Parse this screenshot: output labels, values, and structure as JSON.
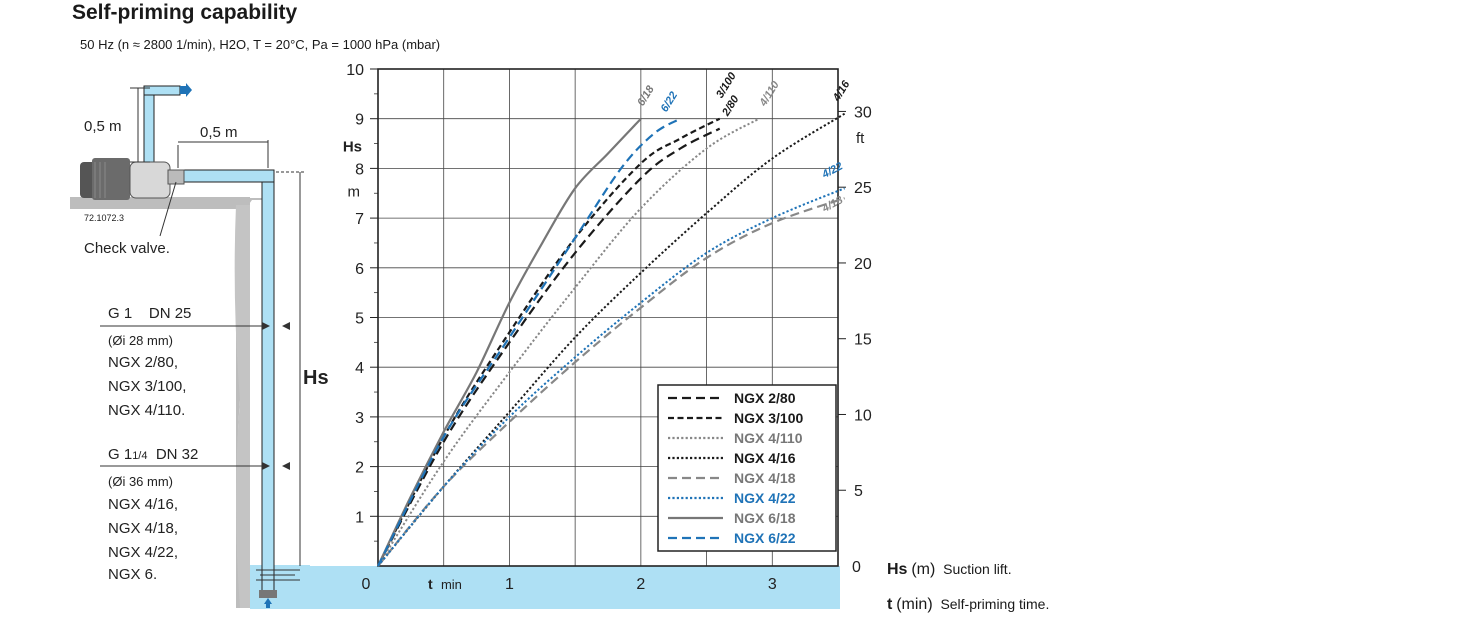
{
  "title": "Self-priming capability",
  "subtitle": "50 Hz (n ≈ 2800 1/min),  H2O, T = 20°C, Pa = 1000 hPa (mbar)",
  "diagram": {
    "discharge_height": "0,5 m",
    "horizontal_length": "0,5 m",
    "part_number": "72.1072.3",
    "check_valve": "Check valve.",
    "hs_label": "Hs",
    "group1": {
      "pipe": "G 1",
      "dn": "DN 25",
      "diameter": "(Øi 28 mm)",
      "models": [
        "NGX 2/80,",
        "NGX 3/100,",
        "NGX 4/110."
      ]
    },
    "group2": {
      "pipe": "G 1",
      "pipe_frac": "1/4",
      "dn": "DN 32",
      "diameter": "(Øi 36 mm)",
      "models": [
        "NGX 4/16,",
        "NGX 4/18,",
        "NGX 4/22,",
        "NGX 6."
      ]
    }
  },
  "chart_data": {
    "type": "line",
    "xlabel": "t",
    "xunit": "min",
    "ylabel": "Hs",
    "yunit": "m",
    "y2unit": "ft",
    "xlim": [
      0,
      3.5
    ],
    "ylim": [
      0,
      10
    ],
    "y2lim": [
      0,
      32.8
    ],
    "x_ticks": [
      "0",
      "1",
      "2",
      "3"
    ],
    "y_ticks": [
      "1",
      "2",
      "3",
      "4",
      "5",
      "6",
      "7",
      "8",
      "9",
      "10"
    ],
    "y2_ticks": [
      "5",
      "10",
      "15",
      "20",
      "25",
      "30"
    ],
    "grid": true,
    "legend_position": "bottom-right",
    "series": [
      {
        "name": "NGX 2/80",
        "tag": "2/80",
        "color": "#1a1a1a",
        "dash": "long",
        "points": [
          [
            0,
            0
          ],
          [
            0.5,
            2.5
          ],
          [
            1,
            4.5
          ],
          [
            1.5,
            6.3
          ],
          [
            2,
            7.8
          ],
          [
            2.3,
            8.4
          ],
          [
            2.6,
            8.8
          ]
        ]
      },
      {
        "name": "NGX 3/100",
        "tag": "3/100",
        "color": "#1a1a1a",
        "dash": "short",
        "points": [
          [
            0,
            0
          ],
          [
            0.5,
            2.6
          ],
          [
            1,
            4.7
          ],
          [
            1.5,
            6.6
          ],
          [
            2,
            8.1
          ],
          [
            2.3,
            8.6
          ],
          [
            2.6,
            9
          ]
        ]
      },
      {
        "name": "NGX 4/110",
        "tag": "4/110",
        "color": "#888888",
        "dash": "dot",
        "points": [
          [
            0,
            0
          ],
          [
            0.5,
            2.1
          ],
          [
            1,
            3.9
          ],
          [
            1.5,
            5.6
          ],
          [
            2,
            7.2
          ],
          [
            2.5,
            8.4
          ],
          [
            2.9,
            9
          ]
        ]
      },
      {
        "name": "NGX 4/16",
        "tag": "4/16",
        "color": "#1a1a1a",
        "dash": "dot",
        "points": [
          [
            0,
            0
          ],
          [
            0.5,
            1.6
          ],
          [
            1,
            3.1
          ],
          [
            1.5,
            4.6
          ],
          [
            2,
            5.9
          ],
          [
            2.5,
            7.1
          ],
          [
            3,
            8.2
          ],
          [
            3.55,
            9.1
          ]
        ]
      },
      {
        "name": "NGX 4/18",
        "tag": "4/18",
        "color": "#888888",
        "dash": "long",
        "points": [
          [
            0,
            0
          ],
          [
            0.5,
            1.6
          ],
          [
            1,
            2.9
          ],
          [
            1.5,
            4.1
          ],
          [
            2,
            5.2
          ],
          [
            2.5,
            6.2
          ],
          [
            3,
            6.9
          ],
          [
            3.55,
            7.4
          ]
        ]
      },
      {
        "name": "NGX 4/22",
        "tag": "4/22",
        "color": "#1f73b7",
        "dash": "dot",
        "points": [
          [
            0,
            0
          ],
          [
            0.5,
            1.6
          ],
          [
            1,
            3
          ],
          [
            1.5,
            4.2
          ],
          [
            2,
            5.3
          ],
          [
            2.5,
            6.3
          ],
          [
            3,
            7
          ],
          [
            3.55,
            7.6
          ]
        ]
      },
      {
        "name": "NGX 6/18",
        "tag": "6/18",
        "color": "#777777",
        "dash": "solid",
        "points": [
          [
            0,
            0
          ],
          [
            0.25,
            1.4
          ],
          [
            0.5,
            2.7
          ],
          [
            0.75,
            3.9
          ],
          [
            1,
            5.3
          ],
          [
            1.25,
            6.5
          ],
          [
            1.5,
            7.6
          ],
          [
            1.75,
            8.3
          ],
          [
            2,
            9
          ]
        ]
      },
      {
        "name": "NGX 6/22",
        "tag": "6/22",
        "color": "#1f73b7",
        "dash": "long",
        "points": [
          [
            0,
            0
          ],
          [
            0.5,
            2.6
          ],
          [
            1,
            4.6
          ],
          [
            1.5,
            6.6
          ],
          [
            1.85,
            8
          ],
          [
            2.1,
            8.7
          ],
          [
            2.3,
            9
          ]
        ]
      }
    ]
  },
  "footnotes": [
    {
      "symbol": "Hs",
      "unit": "(m)",
      "text": "Suction lift."
    },
    {
      "symbol": "t",
      "unit": "(min)",
      "text": "Self-priming time."
    }
  ]
}
